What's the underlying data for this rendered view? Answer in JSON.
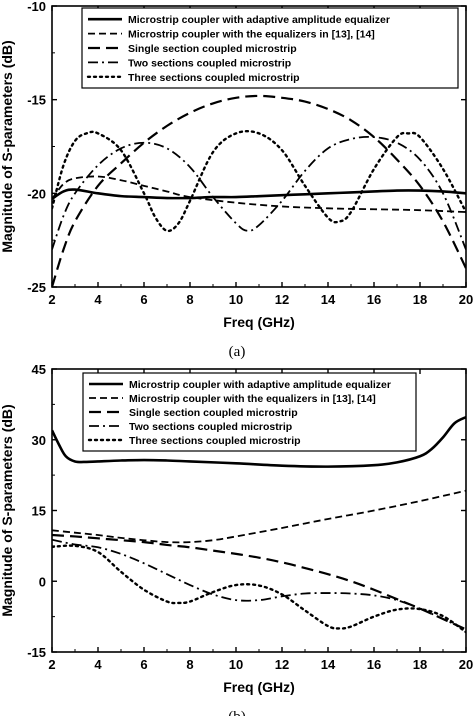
{
  "chart_data": [
    {
      "type": "line",
      "caption": "(a)",
      "xlabel": "Freq (GHz)",
      "ylabel": "Magnitude of S-parameters (dB)",
      "xlim": [
        2,
        20
      ],
      "ylim": [
        -25,
        -10
      ],
      "xticks": [
        2,
        4,
        6,
        8,
        10,
        12,
        14,
        16,
        18,
        20
      ],
      "yticks": [
        -25,
        -20,
        -15,
        -10
      ],
      "legend_position": "top",
      "series": [
        {
          "name": "Microstrip coupler with adaptive amplitude equalizer",
          "style": "solid",
          "x": [
            2,
            2.5,
            3,
            4,
            5,
            6,
            7,
            8,
            9,
            10,
            11,
            12,
            13,
            14,
            15,
            16,
            17,
            18,
            19,
            20
          ],
          "y": [
            -20.3,
            -19.9,
            -19.8,
            -20.0,
            -20.15,
            -20.2,
            -20.25,
            -20.25,
            -20.2,
            -20.2,
            -20.15,
            -20.1,
            -20.05,
            -20.0,
            -19.95,
            -19.9,
            -19.85,
            -19.85,
            -19.9,
            -20.0
          ]
        },
        {
          "name": "Microstrip coupler with the equalizers in [13], [14]",
          "style": "dash-short",
          "x": [
            2,
            2.5,
            3,
            4,
            5,
            6,
            7,
            8,
            10,
            12,
            14,
            16,
            18,
            20
          ],
          "y": [
            -20.3,
            -19.5,
            -19.2,
            -19.1,
            -19.3,
            -19.6,
            -19.9,
            -20.2,
            -20.5,
            -20.7,
            -20.8,
            -20.85,
            -20.9,
            -21.0
          ]
        },
        {
          "name": "Single section coupled microstrip",
          "style": "dash-long",
          "x": [
            2,
            2.5,
            3,
            4,
            5,
            6,
            7,
            8,
            9,
            10,
            11,
            12,
            13,
            14,
            15,
            16,
            17,
            18,
            19,
            20
          ],
          "y": [
            -25.0,
            -23.0,
            -21.5,
            -19.6,
            -18.4,
            -17.3,
            -16.4,
            -15.7,
            -15.2,
            -14.9,
            -14.8,
            -14.9,
            -15.1,
            -15.5,
            -16.1,
            -17.0,
            -18.2,
            -19.6,
            -21.5,
            -24.0
          ]
        },
        {
          "name": "Two sections coupled microstrip",
          "style": "dash-dot",
          "x": [
            2,
            2.5,
            3,
            4,
            5,
            6,
            7,
            8,
            9,
            10,
            10.5,
            11,
            12,
            13,
            14,
            15,
            16,
            17,
            18,
            19,
            20
          ],
          "y": [
            -23.0,
            -21.2,
            -20.0,
            -18.5,
            -17.6,
            -17.3,
            -17.6,
            -18.6,
            -20.2,
            -21.6,
            -22.0,
            -21.7,
            -20.4,
            -18.8,
            -17.6,
            -17.1,
            -17.0,
            -17.3,
            -18.2,
            -20.0,
            -23.0
          ]
        },
        {
          "name": "Three sections coupled microstrip",
          "style": "dot",
          "x": [
            2,
            2.5,
            3,
            3.5,
            4,
            5,
            6,
            6.5,
            7,
            7.5,
            8,
            9,
            10,
            11,
            12,
            13,
            14,
            14.5,
            15,
            16,
            17,
            17.5,
            18,
            19,
            20
          ],
          "y": [
            -20.8,
            -18.5,
            -17.2,
            -16.8,
            -16.8,
            -17.7,
            -20.0,
            -21.3,
            -22.0,
            -21.6,
            -20.4,
            -17.8,
            -16.8,
            -16.8,
            -17.7,
            -19.6,
            -21.3,
            -21.5,
            -21.0,
            -18.7,
            -17.0,
            -16.8,
            -17.0,
            -18.7,
            -21.0
          ]
        }
      ]
    },
    {
      "type": "line",
      "caption": "(b)",
      "xlabel": "Freq (GHz)",
      "ylabel": "Magnitude of S-parameters (dB)",
      "xlim": [
        2,
        20
      ],
      "ylim": [
        -15,
        45
      ],
      "xticks": [
        2,
        4,
        6,
        8,
        10,
        12,
        14,
        16,
        18,
        20
      ],
      "yticks": [
        -15,
        0,
        15,
        30,
        45
      ],
      "legend_position": "top",
      "series": [
        {
          "name": "Microstrip coupler with adaptive amplitude equalizer",
          "style": "solid",
          "x": [
            2,
            2.3,
            2.6,
            3,
            3.5,
            4,
            5,
            6,
            7,
            8,
            10,
            12,
            14,
            16,
            17,
            18,
            18.5,
            19,
            19.5,
            20
          ],
          "y": [
            32.0,
            29.0,
            26.5,
            25.4,
            25.3,
            25.4,
            25.6,
            25.7,
            25.6,
            25.4,
            25.0,
            24.5,
            24.3,
            24.6,
            25.2,
            26.5,
            28.0,
            30.5,
            33.5,
            34.8
          ]
        },
        {
          "name": "Microstrip coupler with the equalizers in [13], [14]",
          "style": "dash-short",
          "x": [
            2,
            3,
            4,
            5,
            6,
            7,
            8,
            9,
            10,
            12,
            14,
            16,
            18,
            20
          ],
          "y": [
            10.8,
            10.3,
            9.8,
            9.2,
            8.7,
            8.3,
            8.3,
            8.7,
            9.5,
            11.3,
            13.2,
            15.0,
            17.0,
            19.2
          ]
        },
        {
          "name": "Single section coupled microstrip",
          "style": "dash-long",
          "x": [
            2,
            3,
            4,
            5,
            6,
            7,
            8,
            9,
            10,
            11,
            12,
            13,
            14,
            15,
            16,
            17,
            18,
            19,
            20
          ],
          "y": [
            9.8,
            9.5,
            9.1,
            8.7,
            8.3,
            7.7,
            7.2,
            6.5,
            5.8,
            5.0,
            4.0,
            2.8,
            1.5,
            0.0,
            -1.8,
            -3.8,
            -5.8,
            -8.0,
            -10.2
          ]
        },
        {
          "name": "Two sections coupled microstrip",
          "style": "dash-dot",
          "x": [
            2,
            3,
            4,
            5,
            6,
            7,
            8,
            9,
            10,
            11,
            12,
            13,
            14,
            15,
            16,
            17,
            18,
            19,
            20
          ],
          "y": [
            8.8,
            7.8,
            7.2,
            5.8,
            3.8,
            1.5,
            -0.8,
            -2.8,
            -4.0,
            -4.0,
            -3.2,
            -2.6,
            -2.5,
            -2.6,
            -3.0,
            -4.0,
            -5.8,
            -8.0,
            -10.2
          ]
        },
        {
          "name": "Three sections coupled microstrip",
          "style": "dot",
          "x": [
            2,
            3,
            4,
            5,
            6,
            7,
            7.5,
            8,
            9,
            10,
            11,
            12,
            13,
            14,
            14.5,
            15,
            16,
            17,
            18,
            19,
            20
          ],
          "y": [
            7.3,
            7.5,
            6.2,
            2.0,
            -1.8,
            -4.3,
            -4.6,
            -4.3,
            -2.3,
            -0.8,
            -0.9,
            -2.8,
            -6.2,
            -9.5,
            -10.0,
            -9.6,
            -7.5,
            -6.0,
            -5.9,
            -7.4,
            -10.8
          ]
        }
      ]
    }
  ]
}
